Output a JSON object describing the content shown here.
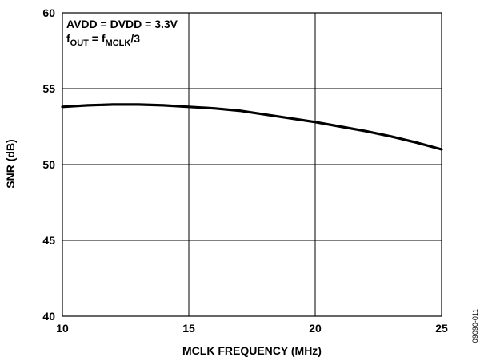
{
  "chart_data": {
    "type": "line",
    "xlabel": "MCLK FREQUENCY (MHz)",
    "ylabel": "SNR (dB)",
    "xlim": [
      10,
      25
    ],
    "ylim": [
      40,
      60
    ],
    "xticks": [
      10,
      15,
      20,
      25
    ],
    "yticks": [
      40,
      45,
      50,
      55,
      60
    ],
    "grid": true,
    "annotation": {
      "line1": "AVDD = DVDD = 3.3V",
      "line2": {
        "f1": "f",
        "sub1": "OUT",
        "eq": " = ",
        "f2": "f",
        "sub2": "MCLK",
        "tail": "/3"
      }
    },
    "series": [
      {
        "x": [
          10,
          11,
          12,
          13,
          14,
          15,
          16,
          17,
          18,
          19,
          20,
          21,
          22,
          23,
          24,
          25
        ],
        "y": [
          53.8,
          53.9,
          53.95,
          53.95,
          53.9,
          53.8,
          53.7,
          53.55,
          53.3,
          53.05,
          52.8,
          52.5,
          52.2,
          51.85,
          51.45,
          51.0
        ]
      }
    ]
  },
  "figure_id": "09090-011"
}
